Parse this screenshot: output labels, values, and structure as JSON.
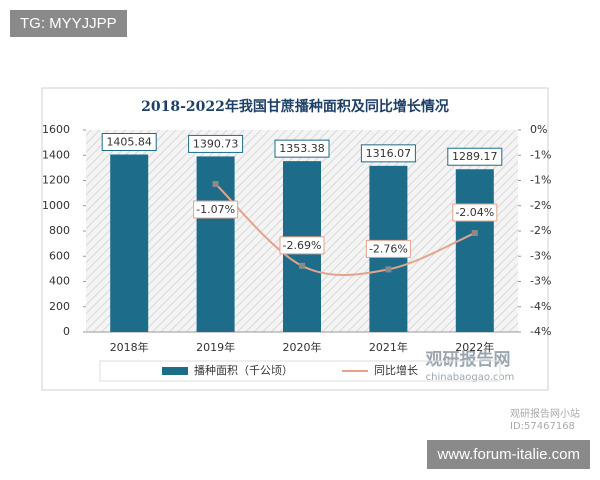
{
  "chart_data": {
    "type": "bar",
    "title": "2018-2022年我国甘蔗播种面积及同比增长情况",
    "categories": [
      "2018年",
      "2019年",
      "2020年",
      "2021年",
      "2022年"
    ],
    "series": [
      {
        "name": "播种面积（千公顷）",
        "color": "#1d6c8a",
        "values": [
          1405.84,
          1390.73,
          1353.38,
          1316.07,
          1289.17
        ]
      },
      {
        "name": "同比增长",
        "color": "#e3a48c",
        "type": "line",
        "axis": "y2",
        "values": [
          null,
          -1.07,
          -2.69,
          -2.76,
          -2.04
        ],
        "value_labels": [
          null,
          "-1.07%",
          "-2.69%",
          "-2.76%",
          "-2.04%"
        ]
      }
    ],
    "ylim": [
      0,
      1600
    ],
    "yticks": [
      0,
      200,
      400,
      600,
      800,
      1000,
      1200,
      1400,
      1600
    ],
    "y2lim": [
      -4,
      0
    ],
    "y2ticks": [
      {
        "value": 0,
        "label": "0%"
      },
      {
        "value": -0.5,
        "label": "-1%"
      },
      {
        "value": -1,
        "label": "-1%"
      },
      {
        "value": -1.5,
        "label": "-2%"
      },
      {
        "value": -2,
        "label": "-2%"
      },
      {
        "value": -2.5,
        "label": "-3%"
      },
      {
        "value": -3,
        "label": "-3%"
      },
      {
        "value": -3.5,
        "label": "-4%"
      },
      {
        "value": -4,
        "label": "-4%"
      }
    ],
    "legend": "bottom"
  },
  "overlays": {
    "tag": "TG: MYYJJPP",
    "site": "www.forum-italie.com",
    "logo_cn": "观研报告网",
    "logo_en": "chinabaogao.com",
    "stamp_name": "观研报告网小站",
    "stamp_id": "ID:57467168"
  }
}
